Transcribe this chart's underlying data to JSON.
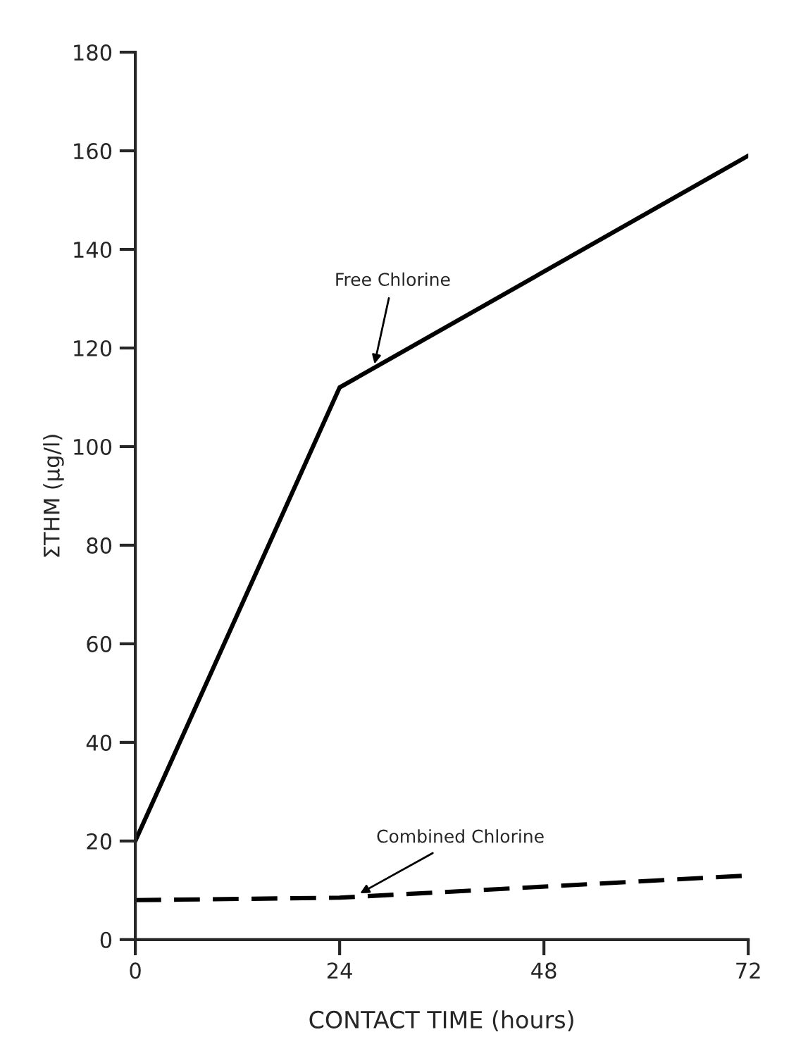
{
  "chart_data": {
    "type": "line",
    "xlabel": "CONTACT TIME (hours)",
    "ylabel": "ΣTHM (µg/l)",
    "xlim": [
      0,
      72
    ],
    "xticks": [
      0,
      24,
      48,
      72
    ],
    "ylim": [
      0,
      180
    ],
    "yticks": [
      0,
      20,
      40,
      60,
      80,
      100,
      120,
      140,
      160,
      180
    ],
    "grid": false,
    "legend": false,
    "marker": "none",
    "series": [
      {
        "color": "#000000",
        "line_style": "solid",
        "x": [
          0,
          24,
          72
        ],
        "values": [
          20,
          112,
          159
        ]
      },
      {
        "color": "#000000",
        "line_style": "dashed",
        "x": [
          0,
          24,
          72
        ],
        "values": [
          8,
          8.5,
          13
        ]
      }
    ],
    "annotations": [
      {
        "text": "Free Chlorine",
        "x": 28,
        "y": 116
      },
      {
        "text": "Combined Chlorine",
        "x": 26,
        "y": 9
      }
    ]
  }
}
